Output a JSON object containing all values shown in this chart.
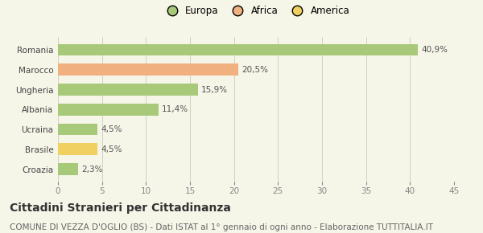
{
  "categories": [
    "Croazia",
    "Brasile",
    "Ucraina",
    "Albania",
    "Ungheria",
    "Marocco",
    "Romania"
  ],
  "values": [
    2.3,
    4.5,
    4.5,
    11.4,
    15.9,
    20.5,
    40.9
  ],
  "labels": [
    "2,3%",
    "4,5%",
    "4,5%",
    "11,4%",
    "15,9%",
    "20,5%",
    "40,9%"
  ],
  "colors": [
    "#a8c87a",
    "#f0d060",
    "#a8c87a",
    "#a8c87a",
    "#a8c87a",
    "#f0b080",
    "#a8c87a"
  ],
  "legend": [
    {
      "label": "Europa",
      "color": "#a8c87a"
    },
    {
      "label": "Africa",
      "color": "#f0b080"
    },
    {
      "label": "America",
      "color": "#f0d060"
    }
  ],
  "xlim": [
    0,
    45
  ],
  "xticks": [
    0,
    5,
    10,
    15,
    20,
    25,
    30,
    35,
    40,
    45
  ],
  "title": "Cittadini Stranieri per Cittadinanza",
  "subtitle": "COMUNE DI VEZZA D'OGLIO (BS) - Dati ISTAT al 1° gennaio di ogni anno - Elaborazione TUTTITALIA.IT",
  "bg_color": "#f5f5e8",
  "bar_height": 0.6,
  "title_fontsize": 10,
  "subtitle_fontsize": 7.5,
  "label_fontsize": 7.5,
  "tick_fontsize": 7.5,
  "legend_fontsize": 8.5
}
